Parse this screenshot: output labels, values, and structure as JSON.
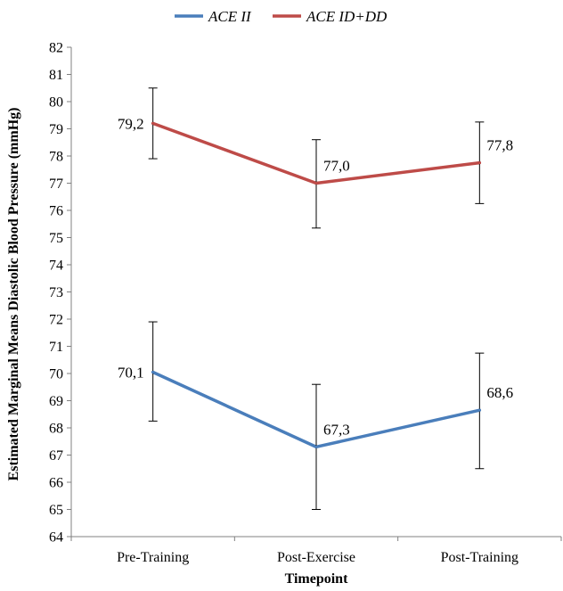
{
  "chart_data": {
    "type": "line",
    "categories": [
      "Pre-Training",
      "Post-Exercise",
      "Post-Training"
    ],
    "xlabel": "Timepoint",
    "ylabel": "Estimated Marginal Means Diastolic Blood Pressure (mmHg)",
    "ylim": [
      64,
      82
    ],
    "ytick_step": 1,
    "grid": false,
    "legend_position": "top",
    "series": [
      {
        "name": "ACE II",
        "color": "#4a7ebb",
        "values": [
          70.05,
          67.3,
          68.65
        ],
        "labels": [
          "70,1",
          "67,3",
          "68,6"
        ],
        "error_low": [
          68.25,
          65.0,
          66.5
        ],
        "error_high": [
          71.9,
          69.6,
          70.75
        ]
      },
      {
        "name": "ACE ID+DD",
        "color": "#be4b48",
        "values": [
          79.2,
          77.0,
          77.75
        ],
        "labels": [
          "79,2",
          "77,0",
          "77,8"
        ],
        "error_low": [
          77.9,
          75.35,
          76.25
        ],
        "error_high": [
          80.5,
          78.6,
          79.25
        ]
      }
    ]
  }
}
